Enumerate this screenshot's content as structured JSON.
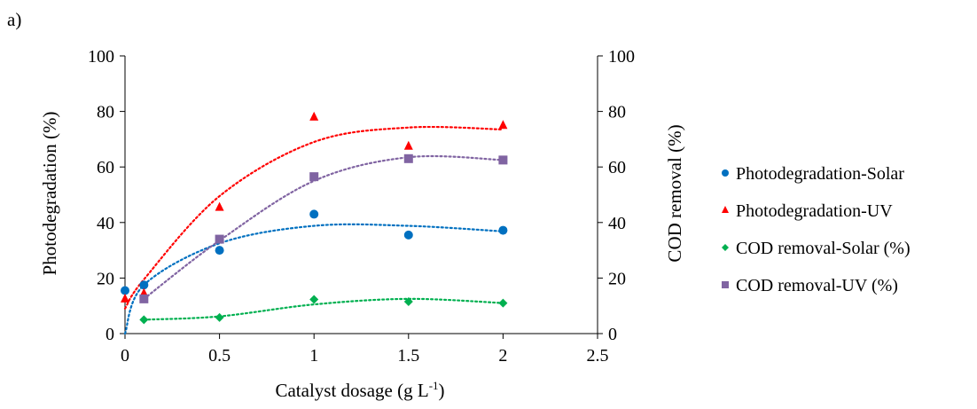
{
  "chart_data": {
    "type": "scatter",
    "panel_label": "a)",
    "xlabel": "Catalyst dosage (g L",
    "xlabel_sup": "-1",
    "xlabel_close": ")",
    "ylabel": "Photodegradation  (%)",
    "y2label": "COD removal (%)",
    "xlim": [
      0,
      2.5
    ],
    "ylim": [
      0,
      100
    ],
    "y2lim": [
      0,
      100
    ],
    "xticks": [
      "0",
      "0.5",
      "1",
      "1.5",
      "2",
      "2.5"
    ],
    "yticks": [
      "0",
      "20",
      "40",
      "60",
      "80",
      "100"
    ],
    "y2ticks": [
      "0",
      "20",
      "40",
      "60",
      "80",
      "100"
    ],
    "grid": false,
    "legend_position": "right",
    "trendlines": "dotted polynomial",
    "series": [
      {
        "name": "Photodegradation-Solar",
        "color": "#0070C0",
        "marker": "circle",
        "axis": "left",
        "x": [
          0,
          0.1,
          0.5,
          1,
          1.5,
          2
        ],
        "y": [
          15.5,
          17.5,
          30,
          43,
          35.5,
          37.2
        ],
        "trend": [
          0,
          17.5,
          32.5,
          38.8,
          38.8,
          36.8
        ]
      },
      {
        "name": "Photodegradation-UV",
        "color": "#FF0000",
        "marker": "triangle",
        "axis": "left",
        "x": [
          0,
          0.1,
          0.5,
          1,
          1.5,
          2
        ],
        "y": [
          12.5,
          14.5,
          45.5,
          78,
          67.5,
          75
        ],
        "trend": [
          9,
          19.5,
          49.5,
          69,
          74.2,
          73.5
        ]
      },
      {
        "name": "COD removal-Solar (%)",
        "color": "#00B050",
        "marker": "diamond",
        "axis": "right",
        "x": [
          0.1,
          0.5,
          1,
          1.5,
          2
        ],
        "y": [
          5,
          5.8,
          12.3,
          11.5,
          11
        ],
        "trend": [
          5,
          6.2,
          10.5,
          12.5,
          11
        ]
      },
      {
        "name": "COD removal-UV (%)",
        "color": "#8064A2",
        "marker": "square",
        "axis": "right",
        "x": [
          0.1,
          0.5,
          1,
          1.5,
          2
        ],
        "y": [
          12.5,
          34,
          56.5,
          63,
          62.5
        ],
        "trend": [
          12.5,
          33.5,
          55,
          63.5,
          62.5
        ]
      }
    ]
  }
}
